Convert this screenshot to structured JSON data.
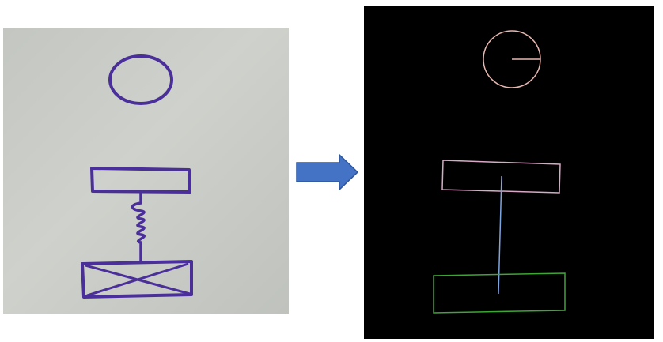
{
  "figure": {
    "left_panel": {
      "kind": "photo of hand-drawn sketch on whiteboard",
      "paper_color": "#c9cbc6",
      "ink_color": "#4a2f9a"
    },
    "arrow": {
      "color": "#4472c4",
      "direction": "right"
    },
    "right_panel": {
      "background": "#000000",
      "colors": {
        "circle": "#e8b7b0",
        "top_rectangle": "#d8a9c6",
        "connector": "#7fa5e0",
        "bottom_rectangle": "#3da635"
      }
    }
  }
}
